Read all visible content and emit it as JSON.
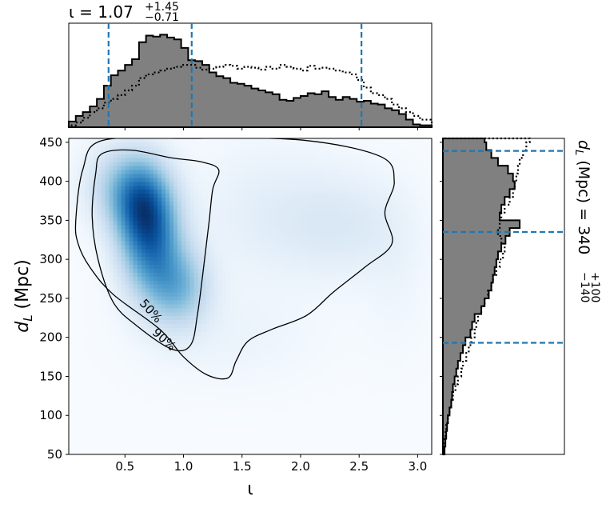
{
  "chart_data": {
    "type": "corner",
    "title": {
      "symbol": "ι",
      "median": "1.07",
      "upper": "+1.45",
      "lower": "−0.71"
    },
    "right_label": {
      "symbol_main": "d",
      "symbol_sub": "L",
      "text": " (Mpc) = 340",
      "upper": "+100",
      "lower": "−140"
    },
    "xlabel": "ι",
    "ylabel_main": "d",
    "ylabel_sub": "L",
    "ylabel_unit": " (Mpc)",
    "xlim": [
      0.02,
      3.12
    ],
    "ylim": [
      50,
      455
    ],
    "xticks": [
      "0.5",
      "1.0",
      "1.5",
      "2.0",
      "2.5",
      "3.0"
    ],
    "yticks": [
      "50",
      "100",
      "150",
      "200",
      "250",
      "300",
      "350",
      "400",
      "450"
    ],
    "x_quantiles": [
      0.36,
      1.07,
      2.52
    ],
    "y_quantiles": [
      193,
      335,
      439
    ],
    "contour_labels": [
      "50%",
      "90%"
    ],
    "colors": {
      "quantile_line": "#1f77b4",
      "hist_fill": "#808080",
      "density": "#08306b"
    },
    "iota_hist": {
      "bins": [
        0.02,
        0.08,
        0.14,
        0.2,
        0.26,
        0.32,
        0.38,
        0.44,
        0.5,
        0.56,
        0.62,
        0.68,
        0.74,
        0.8,
        0.86,
        0.92,
        0.98,
        1.04,
        1.1,
        1.16,
        1.22,
        1.28,
        1.34,
        1.4,
        1.46,
        1.52,
        1.58,
        1.64,
        1.7,
        1.76,
        1.82,
        1.88,
        1.94,
        2.0,
        2.06,
        2.12,
        2.18,
        2.24,
        2.3,
        2.36,
        2.42,
        2.48,
        2.54,
        2.6,
        2.66,
        2.72,
        2.78,
        2.84,
        2.9,
        2.96,
        3.02,
        3.12
      ],
      "posterior": [
        0.06,
        0.12,
        0.16,
        0.22,
        0.3,
        0.44,
        0.55,
        0.6,
        0.66,
        0.72,
        0.9,
        0.97,
        0.96,
        0.98,
        0.95,
        0.93,
        0.84,
        0.71,
        0.7,
        0.66,
        0.58,
        0.54,
        0.52,
        0.47,
        0.46,
        0.44,
        0.41,
        0.39,
        0.37,
        0.35,
        0.29,
        0.28,
        0.31,
        0.33,
        0.36,
        0.35,
        0.38,
        0.32,
        0.29,
        0.32,
        0.3,
        0.27,
        0.28,
        0.25,
        0.24,
        0.2,
        0.18,
        0.14,
        0.08,
        0.03,
        0.02
      ],
      "prior": [
        0.02,
        0.05,
        0.1,
        0.16,
        0.2,
        0.26,
        0.3,
        0.34,
        0.39,
        0.44,
        0.52,
        0.56,
        0.58,
        0.6,
        0.62,
        0.64,
        0.66,
        0.66,
        0.63,
        0.61,
        0.62,
        0.64,
        0.66,
        0.65,
        0.62,
        0.64,
        0.63,
        0.61,
        0.64,
        0.62,
        0.66,
        0.64,
        0.62,
        0.6,
        0.65,
        0.62,
        0.63,
        0.62,
        0.6,
        0.58,
        0.56,
        0.5,
        0.42,
        0.36,
        0.34,
        0.3,
        0.24,
        0.2,
        0.16,
        0.12,
        0.08
      ]
    },
    "dl_hist": {
      "bins": [
        50,
        60,
        70,
        80,
        90,
        100,
        110,
        120,
        130,
        140,
        150,
        160,
        170,
        180,
        190,
        200,
        210,
        220,
        230,
        240,
        250,
        260,
        270,
        280,
        290,
        300,
        310,
        320,
        330,
        340,
        350,
        360,
        370,
        380,
        390,
        400,
        410,
        420,
        430,
        440,
        450,
        455
      ],
      "posterior": [
        0.02,
        0.03,
        0.04,
        0.05,
        0.06,
        0.08,
        0.1,
        0.11,
        0.12,
        0.14,
        0.16,
        0.18,
        0.21,
        0.24,
        0.27,
        0.33,
        0.35,
        0.38,
        0.46,
        0.5,
        0.55,
        0.58,
        0.6,
        0.62,
        0.64,
        0.66,
        0.7,
        0.75,
        0.8,
        0.92,
        0.68,
        0.7,
        0.74,
        0.8,
        0.86,
        0.84,
        0.78,
        0.66,
        0.58,
        0.52,
        0.5
      ],
      "prior": [
        0.01,
        0.02,
        0.03,
        0.04,
        0.06,
        0.08,
        0.1,
        0.12,
        0.15,
        0.18,
        0.22,
        0.24,
        0.28,
        0.31,
        0.34,
        0.38,
        0.4,
        0.42,
        0.46,
        0.5,
        0.54,
        0.58,
        0.6,
        0.64,
        0.68,
        0.72,
        0.74,
        0.7,
        0.66,
        0.68,
        0.7,
        0.74,
        0.8,
        0.84,
        0.86,
        0.88,
        0.9,
        0.92,
        0.96,
        1.0,
        1.04
      ]
    },
    "density_blobs": [
      {
        "x": 0.72,
        "y": 330,
        "sx": 0.17,
        "sy": 48,
        "w": 1.0
      },
      {
        "x": 0.62,
        "y": 375,
        "sx": 0.16,
        "sy": 35,
        "w": 0.65
      },
      {
        "x": 0.95,
        "y": 265,
        "sx": 0.18,
        "sy": 35,
        "w": 0.55
      },
      {
        "x": 0.45,
        "y": 395,
        "sx": 0.2,
        "sy": 35,
        "w": 0.3
      },
      {
        "x": 2.35,
        "y": 345,
        "sx": 0.35,
        "sy": 45,
        "w": 0.13
      },
      {
        "x": 1.7,
        "y": 360,
        "sx": 0.4,
        "sy": 60,
        "w": 0.09
      },
      {
        "x": 1.4,
        "y": 200,
        "sx": 0.5,
        "sy": 40,
        "w": 0.05
      },
      {
        "x": 2.8,
        "y": 290,
        "sx": 0.2,
        "sy": 70,
        "w": 0.04
      }
    ],
    "contour_50": [
      [
        0.25,
        410
      ],
      [
        0.3,
        435
      ],
      [
        0.55,
        440
      ],
      [
        0.9,
        430
      ],
      [
        1.15,
        425
      ],
      [
        1.3,
        415
      ],
      [
        1.25,
        390
      ],
      [
        1.22,
        350
      ],
      [
        1.18,
        300
      ],
      [
        1.12,
        230
      ],
      [
        1.06,
        190
      ],
      [
        0.9,
        185
      ],
      [
        0.6,
        215
      ],
      [
        0.4,
        245
      ],
      [
        0.27,
        300
      ],
      [
        0.22,
        355
      ]
    ],
    "contour_90": [
      [
        0.08,
        350
      ],
      [
        0.14,
        415
      ],
      [
        0.3,
        452
      ],
      [
        1.0,
        455
      ],
      [
        2.0,
        453
      ],
      [
        2.68,
        432
      ],
      [
        2.8,
        400
      ],
      [
        2.72,
        360
      ],
      [
        2.78,
        320
      ],
      [
        2.55,
        290
      ],
      [
        2.28,
        258
      ],
      [
        2.05,
        228
      ],
      [
        1.75,
        210
      ],
      [
        1.55,
        195
      ],
      [
        1.45,
        170
      ],
      [
        1.38,
        148
      ],
      [
        1.2,
        152
      ],
      [
        1.0,
        175
      ],
      [
        0.8,
        210
      ],
      [
        0.4,
        255
      ],
      [
        0.2,
        290
      ],
      [
        0.1,
        320
      ]
    ]
  }
}
